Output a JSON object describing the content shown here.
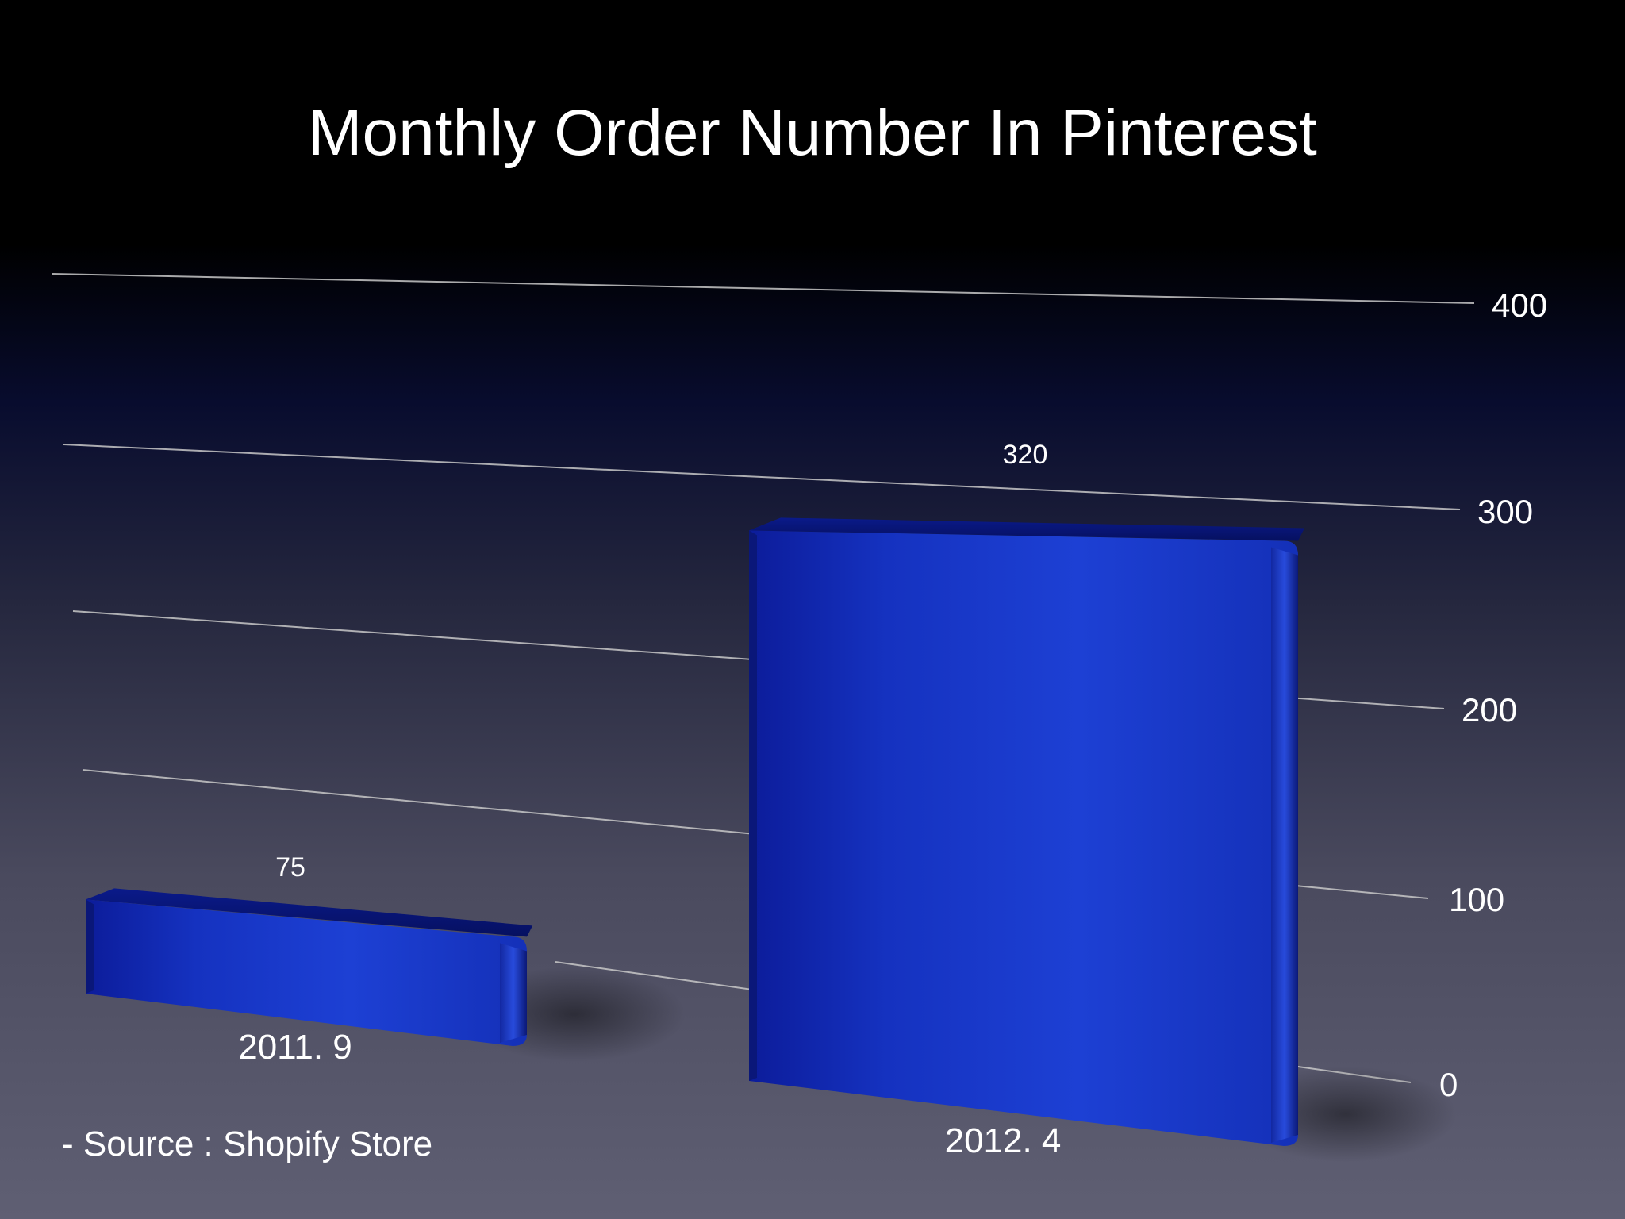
{
  "slide": {
    "title": "Monthly Order Number In Pinterest",
    "source": "- Source : Shopify Store"
  },
  "chart_data": {
    "type": "bar",
    "title": "Monthly Order Number In Pinterest",
    "xlabel": "",
    "ylabel": "",
    "categories": [
      "2011. 9",
      "2012. 4"
    ],
    "values": [
      75,
      320
    ],
    "data_labels": [
      "75",
      "320"
    ],
    "yticks": [
      0,
      100,
      200,
      300,
      400
    ],
    "ytick_labels": [
      "0",
      "100",
      "200",
      "300",
      "400"
    ],
    "ylim": [
      0,
      400
    ],
    "grid": true,
    "axis_position": "right",
    "style": "3d-perspective",
    "colors": {
      "bar": "#1a35c8",
      "bar_dark": "#0c1a88",
      "gridline": "#c8c8c8",
      "text": "#ffffff"
    }
  }
}
